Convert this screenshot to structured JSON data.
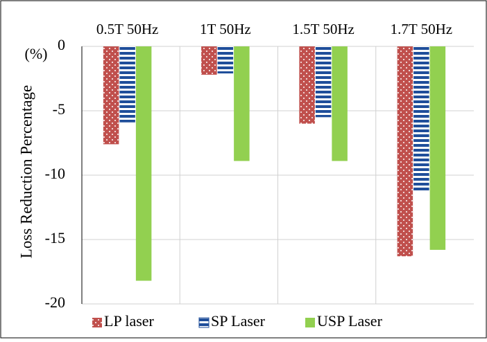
{
  "chart_data": {
    "type": "bar",
    "y_label": "Loss Reduction Percentage",
    "y_unit": "(%)",
    "categories": [
      "0.5T 50Hz",
      "1T 50Hz",
      "1.5T 50Hz",
      "1.7T 50Hz"
    ],
    "series": [
      {
        "name": "LP laser",
        "color": "#c0504d",
        "pattern": "dots",
        "values": [
          -7.6,
          -2.2,
          -6.0,
          -16.3
        ]
      },
      {
        "name": "SP Laser",
        "color": "#1f4e9a",
        "pattern": "stripes",
        "values": [
          -5.9,
          -2.1,
          -5.5,
          -11.2
        ]
      },
      {
        "name": "USP Laser",
        "color": "#92d050",
        "pattern": "solid",
        "values": [
          -18.2,
          -8.9,
          -8.9,
          -15.8
        ]
      }
    ],
    "ylim": [
      -20,
      0
    ],
    "yticks": [
      0,
      -5,
      -10,
      -15,
      -20
    ],
    "grid": true,
    "legend": "bottom"
  }
}
